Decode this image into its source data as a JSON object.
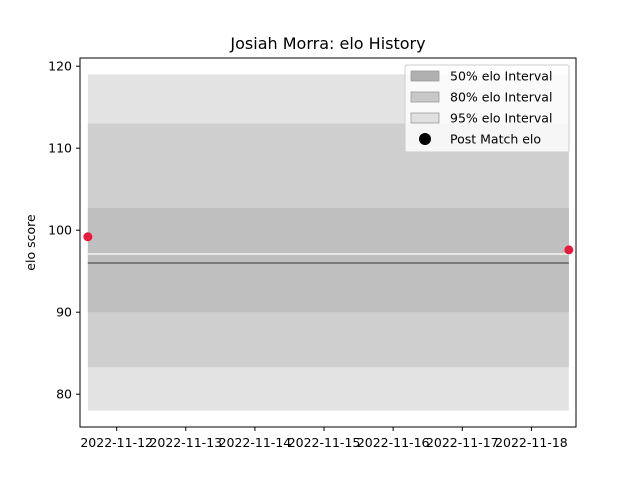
{
  "chart_data": {
    "type": "area",
    "title": "Josiah Morra: elo History",
    "xlabel": "",
    "ylabel": "elo score",
    "x_ticks": [
      "2022-11-12",
      "2022-11-13",
      "2022-11-14",
      "2022-11-15",
      "2022-11-16",
      "2022-11-17",
      "2022-11-18"
    ],
    "xlim": [
      "2022-11-11 11:16",
      "2022-11-18 15:29"
    ],
    "ylim": [
      76,
      121
    ],
    "y_ticks": [
      80,
      90,
      100,
      110,
      120
    ],
    "x_range": [
      "2022-11-11 14:00",
      "2022-11-18 13:00"
    ],
    "bands": [
      {
        "name": "95% elo Interval",
        "low": 78,
        "high": 119,
        "color": "#e3e3e3"
      },
      {
        "name": "80% elo Interval",
        "low": 83.3,
        "high": 113,
        "color": "#cfcfcf"
      },
      {
        "name": "50% elo Interval",
        "low": 90,
        "high": 102.7,
        "color": "#bfbfbf"
      }
    ],
    "center_lines": [
      {
        "y": 96,
        "color": "#7a7a7a"
      },
      {
        "y": 97.1,
        "color": "#e8e8e8"
      }
    ],
    "series": [
      {
        "name": "Post Match elo",
        "x": [
          "2022-11-11 14:00",
          "2022-11-18 13:00"
        ],
        "y": [
          99.2,
          97.6
        ],
        "color": "#e8193c"
      }
    ],
    "legend": {
      "position": "top-right",
      "entries": [
        {
          "label": "50% elo Interval",
          "kind": "patch",
          "color": "#b0b0b0"
        },
        {
          "label": "80% elo Interval",
          "kind": "patch",
          "color": "#c8c8c8"
        },
        {
          "label": "95% elo Interval",
          "kind": "patch",
          "color": "#e0e0e0"
        },
        {
          "label": "Post Match elo",
          "kind": "marker",
          "color": "#000000"
        }
      ]
    },
    "grid": false
  }
}
